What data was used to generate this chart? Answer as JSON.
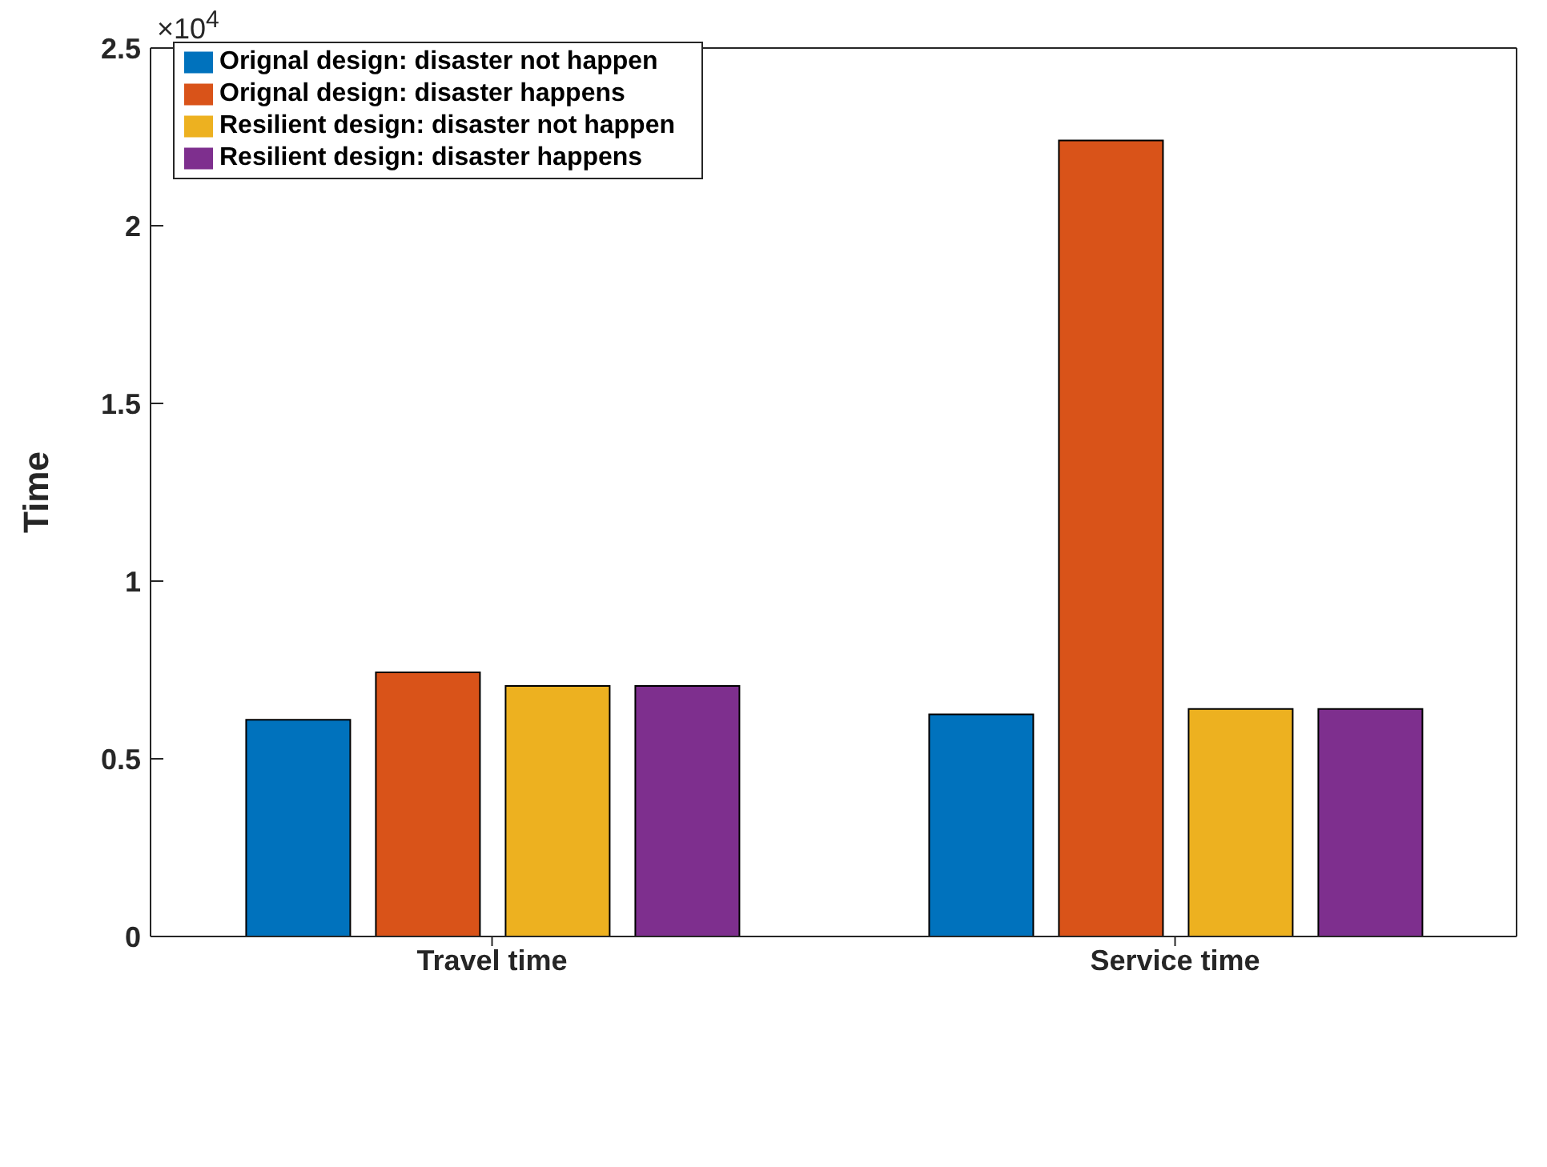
{
  "chart_data": {
    "type": "bar",
    "ylabel": "Time",
    "categories": [
      "Travel time",
      "Service time"
    ],
    "series": [
      {
        "name": "Orignal design: disaster not happen",
        "color": "#0072bd",
        "values": [
          0.61,
          0.625
        ]
      },
      {
        "name": "Orignal design: disaster happens",
        "color": "#d95319",
        "values": [
          0.743,
          2.24
        ]
      },
      {
        "name": "Resilient design: disaster not happen",
        "color": "#edb120",
        "values": [
          0.705,
          0.64
        ]
      },
      {
        "name": "Resilient design: disaster happens",
        "color": "#7e2f8e",
        "values": [
          0.705,
          0.64
        ]
      }
    ],
    "ylim": [
      0,
      2.5
    ],
    "yticks": [
      0,
      0.5,
      1,
      1.5,
      2,
      2.5
    ],
    "annotations": [
      "×10$^{4}$"
    ],
    "legend": "top left",
    "grid": false
  }
}
